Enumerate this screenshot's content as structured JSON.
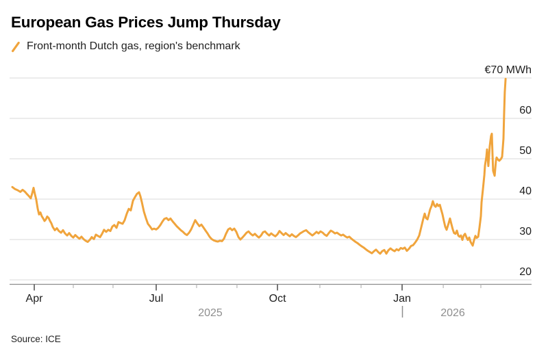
{
  "title": "European Gas Prices Jump Thursday",
  "legend": {
    "icon": "slash-icon",
    "label": "Front-month Dutch gas, region's benchmark"
  },
  "source": "Source: ICE",
  "colors": {
    "line": "#F0A43C",
    "grid": "#D9D9D9",
    "axis_line": "#8C8C8C",
    "major_tick": "#4A4A4A",
    "minor_tick": "#B5B5B5",
    "label_text": "#1D1D1D",
    "muted_text": "#8E8E8E"
  },
  "y_axis": {
    "ticks": [
      {
        "value": 70,
        "label": "€70 MWh"
      },
      {
        "value": 60,
        "label": "60"
      },
      {
        "value": 50,
        "label": "50"
      },
      {
        "value": 40,
        "label": "40"
      },
      {
        "value": 30,
        "label": "30"
      },
      {
        "value": 20,
        "label": "20"
      }
    ]
  },
  "x_axis": {
    "major_ticks": [
      {
        "label": "Apr",
        "day": 16.4
      },
      {
        "label": "Jul",
        "day": 107.6
      },
      {
        "label": "Oct",
        "day": 198.3
      },
      {
        "label": "Jan",
        "day": 291.5
      }
    ],
    "minor_tick_days": [
      45.6,
      75.3,
      137.8,
      168.0,
      230.0,
      260.8,
      322.3,
      350.4
    ],
    "years": [
      {
        "label": "2025"
      },
      {
        "label": "2026"
      }
    ]
  },
  "chart_data": {
    "type": "line",
    "title": "European Gas Prices Jump Thursday",
    "series_name": "Front-month Dutch gas, region's benchmark",
    "ylabel": "€/MWh",
    "ylim": [
      20,
      70
    ],
    "x_unit": "days since first observation (~mid-March 2025)",
    "grid": "horizontal",
    "legend_position": "top-left",
    "points": [
      [
        0,
        43.0
      ],
      [
        2,
        42.5
      ],
      [
        4,
        42.2
      ],
      [
        6,
        41.8
      ],
      [
        7.7,
        42.3
      ],
      [
        9.2,
        41.9
      ],
      [
        10.8,
        41.3
      ],
      [
        12.3,
        40.8
      ],
      [
        13.8,
        40.2
      ],
      [
        14.9,
        41.5
      ],
      [
        15.9,
        42.8
      ],
      [
        16.9,
        41.2
      ],
      [
        17.9,
        39.9
      ],
      [
        19,
        37.6
      ],
      [
        20,
        36.2
      ],
      [
        21,
        36.7
      ],
      [
        22,
        35.8
      ],
      [
        23.1,
        35.2
      ],
      [
        24.1,
        34.6
      ],
      [
        25.1,
        35.0
      ],
      [
        26.1,
        35.7
      ],
      [
        27.2,
        35.3
      ],
      [
        28.2,
        34.6
      ],
      [
        29.2,
        34.0
      ],
      [
        30.2,
        33.1
      ],
      [
        31.8,
        32.3
      ],
      [
        33.3,
        32.8
      ],
      [
        34.8,
        32.1
      ],
      [
        36.4,
        31.7
      ],
      [
        37.9,
        32.3
      ],
      [
        39.4,
        31.5
      ],
      [
        41,
        31.0
      ],
      [
        42.5,
        31.6
      ],
      [
        44.1,
        30.9
      ],
      [
        45.6,
        30.5
      ],
      [
        47.1,
        31.1
      ],
      [
        48.7,
        30.6
      ],
      [
        50.2,
        30.2
      ],
      [
        51.7,
        30.7
      ],
      [
        53.3,
        30.1
      ],
      [
        54.8,
        29.7
      ],
      [
        56.4,
        29.4
      ],
      [
        57.9,
        29.9
      ],
      [
        59.4,
        30.6
      ],
      [
        61,
        30.1
      ],
      [
        62.5,
        31.2
      ],
      [
        64,
        30.9
      ],
      [
        65.6,
        30.6
      ],
      [
        67.1,
        31.4
      ],
      [
        68.6,
        32.4
      ],
      [
        70.2,
        31.9
      ],
      [
        71.7,
        32.4
      ],
      [
        73.3,
        32.1
      ],
      [
        74.8,
        33.2
      ],
      [
        76.3,
        33.6
      ],
      [
        77.9,
        32.9
      ],
      [
        79.4,
        34.3
      ],
      [
        80.9,
        34.1
      ],
      [
        82.5,
        33.9
      ],
      [
        84,
        34.8
      ],
      [
        85.6,
        36.4
      ],
      [
        87.1,
        37.6
      ],
      [
        88.6,
        37.2
      ],
      [
        90.2,
        39.6
      ],
      [
        91.7,
        40.5
      ],
      [
        93.2,
        41.3
      ],
      [
        94.8,
        41.7
      ],
      [
        95.8,
        40.7
      ],
      [
        96.8,
        39.3
      ],
      [
        98.4,
        36.9
      ],
      [
        99.9,
        35.3
      ],
      [
        101.4,
        33.9
      ],
      [
        103,
        33.2
      ],
      [
        104.5,
        32.5
      ],
      [
        106,
        32.7
      ],
      [
        107.6,
        32.5
      ],
      [
        109.1,
        32.9
      ],
      [
        110.7,
        33.6
      ],
      [
        112.2,
        34.4
      ],
      [
        113.7,
        35.1
      ],
      [
        115.3,
        35.3
      ],
      [
        116.8,
        34.8
      ],
      [
        118.3,
        35.2
      ],
      [
        119.9,
        34.5
      ],
      [
        121.4,
        33.9
      ],
      [
        122.9,
        33.3
      ],
      [
        124.5,
        32.8
      ],
      [
        126,
        32.3
      ],
      [
        127.6,
        31.9
      ],
      [
        129.1,
        31.4
      ],
      [
        130.6,
        31.1
      ],
      [
        132.2,
        31.7
      ],
      [
        133.7,
        32.5
      ],
      [
        135.2,
        33.6
      ],
      [
        136.8,
        34.8
      ],
      [
        138.3,
        34.0
      ],
      [
        139.9,
        33.3
      ],
      [
        141.4,
        33.7
      ],
      [
        142.9,
        33.0
      ],
      [
        144.5,
        32.2
      ],
      [
        146,
        31.5
      ],
      [
        147.5,
        30.7
      ],
      [
        149.1,
        30.1
      ],
      [
        150.6,
        29.8
      ],
      [
        152.2,
        29.6
      ],
      [
        153.7,
        29.5
      ],
      [
        155.2,
        29.7
      ],
      [
        156.8,
        29.6
      ],
      [
        158.3,
        30.2
      ],
      [
        159.8,
        31.4
      ],
      [
        161.4,
        32.5
      ],
      [
        162.9,
        32.8
      ],
      [
        164.4,
        32.3
      ],
      [
        166,
        32.7
      ],
      [
        167.5,
        31.9
      ],
      [
        169.1,
        30.6
      ],
      [
        170.6,
        30.0
      ],
      [
        172.1,
        30.5
      ],
      [
        173.7,
        31.1
      ],
      [
        175.2,
        31.7
      ],
      [
        176.7,
        32.0
      ],
      [
        178.3,
        31.4
      ],
      [
        179.8,
        31.0
      ],
      [
        181.4,
        31.4
      ],
      [
        182.9,
        30.9
      ],
      [
        184.4,
        30.5
      ],
      [
        186,
        31.0
      ],
      [
        187.5,
        31.8
      ],
      [
        189,
        32.0
      ],
      [
        190.6,
        31.4
      ],
      [
        192.1,
        31.0
      ],
      [
        193.6,
        31.5
      ],
      [
        195.2,
        31.1
      ],
      [
        196.7,
        30.8
      ],
      [
        198.3,
        31.3
      ],
      [
        199.8,
        32.1
      ],
      [
        201.3,
        31.6
      ],
      [
        202.9,
        31.1
      ],
      [
        204.4,
        31.6
      ],
      [
        205.9,
        31.2
      ],
      [
        207.5,
        30.8
      ],
      [
        209,
        31.3
      ],
      [
        210.5,
        30.9
      ],
      [
        212.1,
        30.6
      ],
      [
        213.6,
        31.0
      ],
      [
        215.2,
        31.5
      ],
      [
        216.7,
        31.8
      ],
      [
        218.2,
        32.1
      ],
      [
        219.8,
        32.3
      ],
      [
        221.3,
        31.8
      ],
      [
        222.8,
        31.4
      ],
      [
        224.4,
        31.0
      ],
      [
        225.9,
        31.4
      ],
      [
        227.5,
        31.9
      ],
      [
        229,
        31.5
      ],
      [
        230.5,
        32.0
      ],
      [
        232.1,
        31.7
      ],
      [
        233.6,
        31.2
      ],
      [
        235.1,
        30.9
      ],
      [
        236.7,
        31.6
      ],
      [
        238.2,
        32.2
      ],
      [
        239.8,
        31.9
      ],
      [
        241.3,
        31.5
      ],
      [
        242.8,
        31.7
      ],
      [
        244.4,
        31.3
      ],
      [
        245.9,
        31.0
      ],
      [
        247.4,
        31.2
      ],
      [
        249,
        30.8
      ],
      [
        250.5,
        30.5
      ],
      [
        252,
        30.7
      ],
      [
        253.6,
        30.2
      ],
      [
        255.1,
        29.8
      ],
      [
        256.7,
        29.4
      ],
      [
        258.2,
        29.1
      ],
      [
        259.7,
        28.7
      ],
      [
        261.3,
        28.3
      ],
      [
        262.8,
        28.0
      ],
      [
        264.3,
        27.6
      ],
      [
        265.9,
        27.2
      ],
      [
        267.4,
        26.9
      ],
      [
        268.9,
        26.6
      ],
      [
        270.5,
        27.1
      ],
      [
        272,
        27.5
      ],
      [
        273.6,
        26.9
      ],
      [
        275.1,
        26.5
      ],
      [
        276.6,
        27.1
      ],
      [
        278.2,
        27.4
      ],
      [
        279.7,
        26.5
      ],
      [
        281.2,
        27.3
      ],
      [
        282.8,
        27.8
      ],
      [
        284.3,
        27.4
      ],
      [
        285.9,
        27.1
      ],
      [
        287.4,
        27.6
      ],
      [
        288.9,
        27.3
      ],
      [
        290.5,
        27.9
      ],
      [
        292,
        27.7
      ],
      [
        293.5,
        28.0
      ],
      [
        295.1,
        27.2
      ],
      [
        296.6,
        27.7
      ],
      [
        298.2,
        28.4
      ],
      [
        299.7,
        28.6
      ],
      [
        301.2,
        29.2
      ],
      [
        302.8,
        30.0
      ],
      [
        304.3,
        31.0
      ],
      [
        305.8,
        33.0
      ],
      [
        307.4,
        35.2
      ],
      [
        308.4,
        36.4
      ],
      [
        309.4,
        35.3
      ],
      [
        310.5,
        35.0
      ],
      [
        311.5,
        36.2
      ],
      [
        312.5,
        37.5
      ],
      [
        313.5,
        38.3
      ],
      [
        314.5,
        39.5
      ],
      [
        315.6,
        38.4
      ],
      [
        316.6,
        38.1
      ],
      [
        317.6,
        38.8
      ],
      [
        318.6,
        38.3
      ],
      [
        319.7,
        38.6
      ],
      [
        320.7,
        37.4
      ],
      [
        321.7,
        36.2
      ],
      [
        322.7,
        34.7
      ],
      [
        323.7,
        33.2
      ],
      [
        324.8,
        32.4
      ],
      [
        326.3,
        34.0
      ],
      [
        327.3,
        35.2
      ],
      [
        328.4,
        33.8
      ],
      [
        329.4,
        32.5
      ],
      [
        330.4,
        31.6
      ],
      [
        331.4,
        31.4
      ],
      [
        332.5,
        32.2
      ],
      [
        333.5,
        31.0
      ],
      [
        334.5,
        30.7
      ],
      [
        335.5,
        31.0
      ],
      [
        336.6,
        29.9
      ],
      [
        337.6,
        31.0
      ],
      [
        338.6,
        31.4
      ],
      [
        339.7,
        30.5
      ],
      [
        340.7,
        29.9
      ],
      [
        341.7,
        30.5
      ],
      [
        342.7,
        29.4
      ],
      [
        344.3,
        28.5
      ],
      [
        345.3,
        29.8
      ],
      [
        346.3,
        30.9
      ],
      [
        347.3,
        30.4
      ],
      [
        348.4,
        30.7
      ],
      [
        349.4,
        33.0
      ],
      [
        350.4,
        35.8
      ],
      [
        350.9,
        39.2
      ],
      [
        352,
        42.6
      ],
      [
        353,
        46.0
      ],
      [
        353.5,
        48.3
      ],
      [
        354.5,
        50.5
      ],
      [
        355,
        52.3
      ],
      [
        356,
        48.2
      ],
      [
        357,
        53.0
      ],
      [
        358,
        55.6
      ],
      [
        358.6,
        56.2
      ],
      [
        359.1,
        51.0
      ],
      [
        359.6,
        47.0
      ],
      [
        360.7,
        45.8
      ],
      [
        361.7,
        49.5
      ],
      [
        362.2,
        50.3
      ],
      [
        363.2,
        49.8
      ],
      [
        364.2,
        49.5
      ],
      [
        365.3,
        49.9
      ],
      [
        366.3,
        50.5
      ],
      [
        367.3,
        55.0
      ],
      [
        367.8,
        61.0
      ],
      [
        368.3,
        66.5
      ],
      [
        368.9,
        69.8
      ]
    ]
  }
}
